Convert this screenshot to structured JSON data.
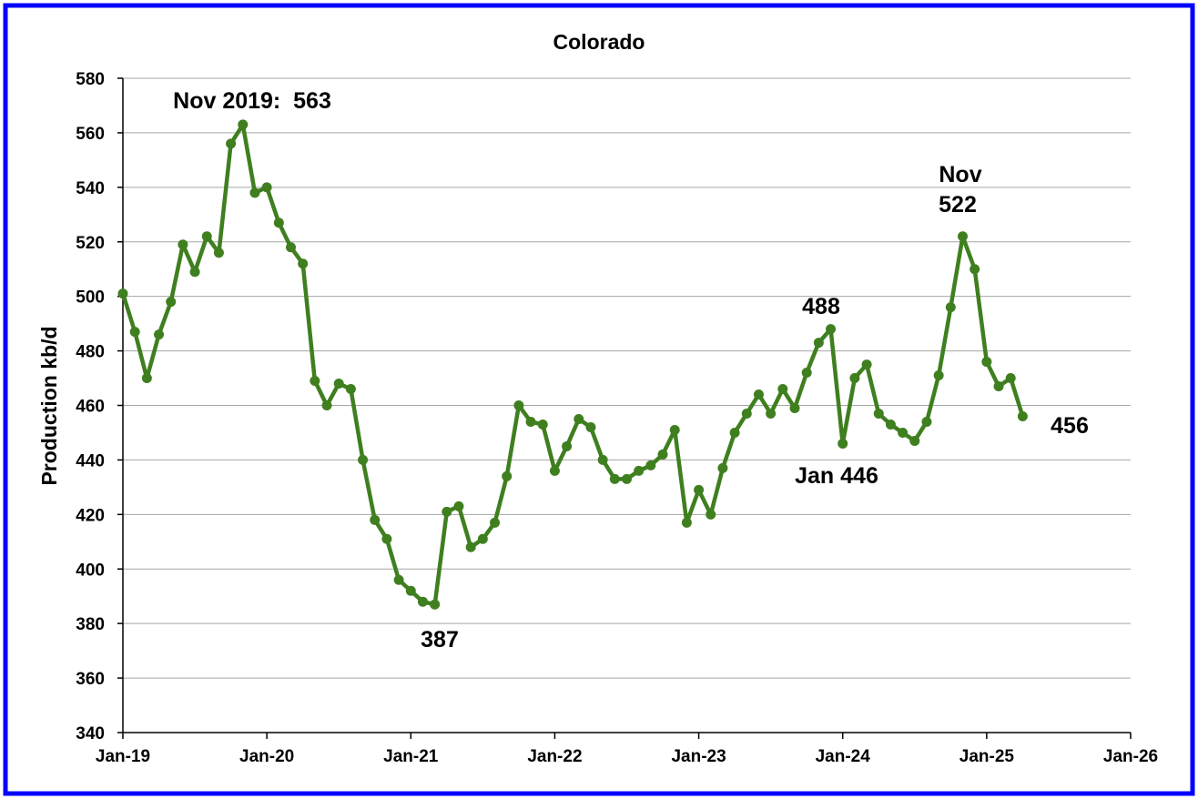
{
  "chart_data": {
    "type": "line",
    "title": "Colorado",
    "y_label": "Production kb/d",
    "categories": [
      "Jan-19",
      null,
      null,
      null,
      null,
      null,
      null,
      null,
      null,
      null,
      null,
      null,
      "Jan-20",
      null,
      null,
      null,
      null,
      null,
      null,
      null,
      null,
      null,
      null,
      null,
      "Jan-21",
      null,
      null,
      null,
      null,
      null,
      null,
      null,
      null,
      null,
      null,
      null,
      "Jan-22",
      null,
      null,
      null,
      null,
      null,
      null,
      null,
      null,
      null,
      null,
      null,
      "Jan-23",
      null,
      null,
      null,
      null,
      null,
      null,
      null,
      null,
      null,
      null,
      null,
      "Jan-24",
      null,
      null,
      null,
      null,
      null,
      null,
      null,
      null,
      null,
      null,
      null,
      "Jan-25",
      null,
      null,
      null,
      null,
      null,
      null,
      null,
      null,
      null,
      null,
      null,
      "Jan-26"
    ],
    "series": [
      {
        "color": "#3f7f1f",
        "values": [
          501,
          487,
          470,
          486,
          498,
          519,
          509,
          522,
          516,
          556,
          563,
          538,
          540,
          527,
          518,
          512,
          469,
          460,
          468,
          466,
          440,
          418,
          411,
          396,
          392,
          388,
          387,
          421,
          423,
          408,
          411,
          417,
          434,
          460,
          454,
          453,
          436,
          445,
          455,
          452,
          440,
          433,
          433,
          436,
          438,
          442,
          451,
          417,
          429,
          420,
          437,
          450,
          457,
          464,
          457,
          466,
          459,
          472,
          483,
          488,
          446,
          470,
          475,
          457,
          453,
          450,
          447,
          454,
          471,
          496,
          522,
          510,
          476,
          467,
          470,
          456,
          null,
          null,
          null,
          null,
          null,
          null,
          null,
          null,
          null
        ]
      }
    ],
    "ylim": [
      340,
      580
    ],
    "yticks": [
      340,
      360,
      380,
      400,
      420,
      440,
      460,
      480,
      500,
      520,
      540,
      560,
      580
    ],
    "grid": true,
    "annotations": [
      "Nov 2019:  563",
      "387",
      "488",
      "Jan 446",
      "Nov",
      "522",
      "456"
    ]
  }
}
